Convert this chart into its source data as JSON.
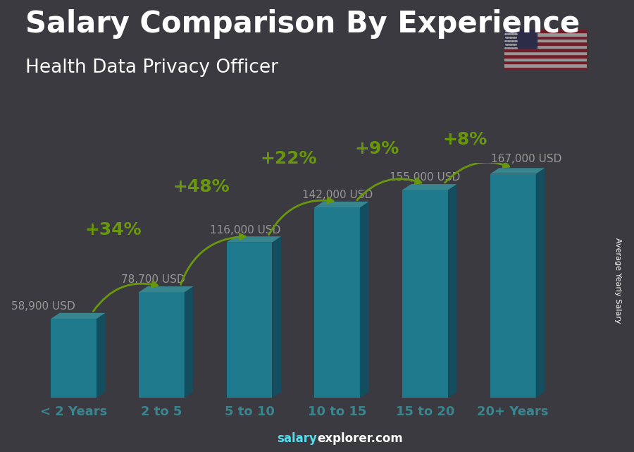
{
  "title": "Salary Comparison By Experience",
  "subtitle": "Health Data Privacy Officer",
  "ylabel": "Average Yearly Salary",
  "categories": [
    "< 2 Years",
    "2 to 5",
    "5 to 10",
    "10 to 15",
    "15 to 20",
    "20+ Years"
  ],
  "values": [
    58900,
    78700,
    116000,
    142000,
    155000,
    167000
  ],
  "labels": [
    "58,900 USD",
    "78,700 USD",
    "116,000 USD",
    "142,000 USD",
    "155,000 USD",
    "167,000 USD"
  ],
  "pct_labels": [
    "+34%",
    "+48%",
    "+22%",
    "+9%",
    "+8%"
  ],
  "bar_face_color": "#20c8e8",
  "bar_side_color": "#0e7a9a",
  "bar_top_color": "#50ddf0",
  "bg_color": "#555560",
  "title_color": "#ffffff",
  "subtitle_color": "#ffffff",
  "label_color": "#ffffff",
  "pct_color": "#aaff00",
  "tick_color": "#55ddee",
  "watermark_salary_color": "#55ddee",
  "watermark_explorer_color": "#ffffff",
  "title_fontsize": 30,
  "subtitle_fontsize": 19,
  "label_fontsize": 11,
  "pct_fontsize": 18,
  "tick_fontsize": 13,
  "ylabel_fontsize": 8
}
